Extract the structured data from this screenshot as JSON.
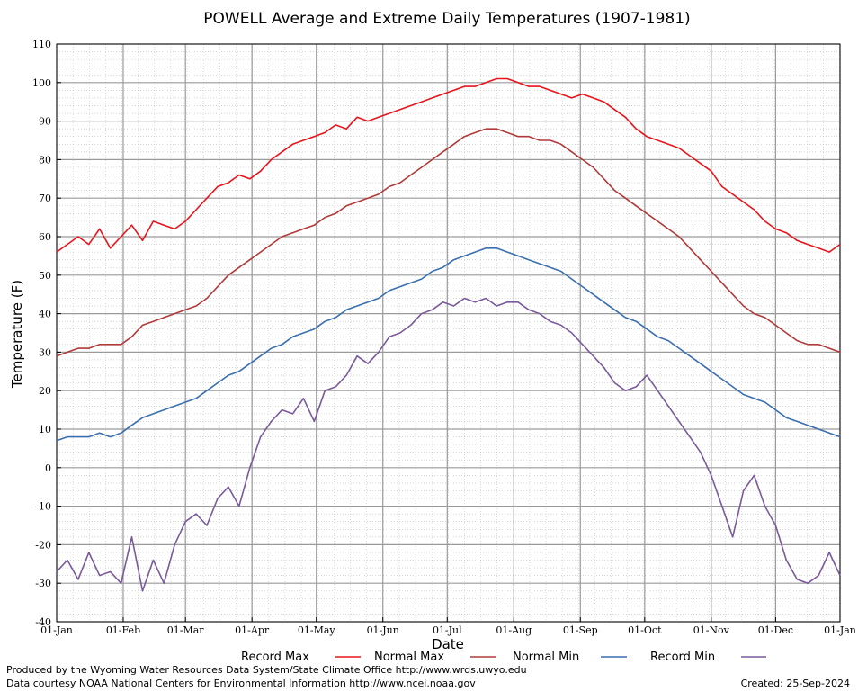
{
  "chart_data": {
    "type": "line",
    "title": "POWELL Average and Extreme Daily Temperatures (1907-1981)",
    "xlabel": "Date",
    "ylabel": "Temperature (F)",
    "xlim": [
      1,
      366
    ],
    "ylim": [
      -40,
      110
    ],
    "y_ticks": [
      -40,
      -30,
      -20,
      -10,
      0,
      10,
      20,
      30,
      40,
      50,
      60,
      70,
      80,
      90,
      100,
      110
    ],
    "x_ticks": [
      {
        "label": "01-Jan",
        "day": 1
      },
      {
        "label": "01-Feb",
        "day": 32
      },
      {
        "label": "01-Mar",
        "day": 61
      },
      {
        "label": "01-Apr",
        "day": 92
      },
      {
        "label": "01-May",
        "day": 122
      },
      {
        "label": "01-Jun",
        "day": 153
      },
      {
        "label": "01-Jul",
        "day": 183
      },
      {
        "label": "01-Aug",
        "day": 214
      },
      {
        "label": "01-Sep",
        "day": 245
      },
      {
        "label": "01-Oct",
        "day": 275
      },
      {
        "label": "01-Nov",
        "day": 306
      },
      {
        "label": "01-Dec",
        "day": 336
      },
      {
        "label": "01-Jan",
        "day": 366
      }
    ],
    "grid": true,
    "legend_position": "bottom",
    "series": [
      {
        "name": "Record Max",
        "color": "#e8141c",
        "x": [
          1,
          6,
          11,
          16,
          21,
          26,
          31,
          36,
          41,
          46,
          51,
          56,
          61,
          66,
          71,
          76,
          81,
          86,
          91,
          96,
          101,
          106,
          111,
          116,
          121,
          126,
          131,
          136,
          141,
          146,
          151,
          156,
          161,
          166,
          171,
          176,
          181,
          186,
          191,
          196,
          201,
          206,
          211,
          216,
          221,
          226,
          231,
          236,
          241,
          246,
          251,
          256,
          261,
          266,
          271,
          276,
          281,
          286,
          291,
          296,
          301,
          306,
          311,
          316,
          321,
          326,
          331,
          336,
          341,
          346,
          351,
          356,
          361,
          366
        ],
        "values": [
          56,
          58,
          60,
          58,
          62,
          57,
          60,
          63,
          59,
          64,
          63,
          62,
          64,
          67,
          70,
          73,
          74,
          76,
          75,
          77,
          80,
          82,
          84,
          85,
          86,
          87,
          89,
          88,
          91,
          90,
          91,
          92,
          93,
          94,
          95,
          96,
          97,
          98,
          99,
          99,
          100,
          101,
          101,
          100,
          99,
          99,
          98,
          97,
          96,
          97,
          96,
          95,
          93,
          91,
          88,
          86,
          85,
          84,
          83,
          81,
          79,
          77,
          73,
          71,
          69,
          67,
          64,
          62,
          61,
          59,
          58,
          57,
          56,
          58
        ]
      },
      {
        "name": "Normal Max",
        "color": "#b03a3a",
        "x": [
          1,
          6,
          11,
          16,
          21,
          26,
          31,
          36,
          41,
          46,
          51,
          56,
          61,
          66,
          71,
          76,
          81,
          86,
          91,
          96,
          101,
          106,
          111,
          116,
          121,
          126,
          131,
          136,
          141,
          146,
          151,
          156,
          161,
          166,
          171,
          176,
          181,
          186,
          191,
          196,
          201,
          206,
          211,
          216,
          221,
          226,
          231,
          236,
          241,
          246,
          251,
          256,
          261,
          266,
          271,
          276,
          281,
          286,
          291,
          296,
          301,
          306,
          311,
          316,
          321,
          326,
          331,
          336,
          341,
          346,
          351,
          356,
          361,
          366
        ],
        "values": [
          29,
          30,
          31,
          31,
          32,
          32,
          32,
          34,
          37,
          38,
          39,
          40,
          41,
          42,
          44,
          47,
          50,
          52,
          54,
          56,
          58,
          60,
          61,
          62,
          63,
          65,
          66,
          68,
          69,
          70,
          71,
          73,
          74,
          76,
          78,
          80,
          82,
          84,
          86,
          87,
          88,
          88,
          87,
          86,
          86,
          85,
          85,
          84,
          82,
          80,
          78,
          75,
          72,
          70,
          68,
          66,
          64,
          62,
          60,
          57,
          54,
          51,
          48,
          45,
          42,
          40,
          39,
          37,
          35,
          33,
          32,
          32,
          31,
          30
        ]
      },
      {
        "name": "Normal Min",
        "color": "#3a6fb0",
        "x": [
          1,
          6,
          11,
          16,
          21,
          26,
          31,
          36,
          41,
          46,
          51,
          56,
          61,
          66,
          71,
          76,
          81,
          86,
          91,
          96,
          101,
          106,
          111,
          116,
          121,
          126,
          131,
          136,
          141,
          146,
          151,
          156,
          161,
          166,
          171,
          176,
          181,
          186,
          191,
          196,
          201,
          206,
          211,
          216,
          221,
          226,
          231,
          236,
          241,
          246,
          251,
          256,
          261,
          266,
          271,
          276,
          281,
          286,
          291,
          296,
          301,
          306,
          311,
          316,
          321,
          326,
          331,
          336,
          341,
          346,
          351,
          356,
          361,
          366
        ],
        "values": [
          7,
          8,
          8,
          8,
          9,
          8,
          9,
          11,
          13,
          14,
          15,
          16,
          17,
          18,
          20,
          22,
          24,
          25,
          27,
          29,
          31,
          32,
          34,
          35,
          36,
          38,
          39,
          41,
          42,
          43,
          44,
          46,
          47,
          48,
          49,
          51,
          52,
          54,
          55,
          56,
          57,
          57,
          56,
          55,
          54,
          53,
          52,
          51,
          49,
          47,
          45,
          43,
          41,
          39,
          38,
          36,
          34,
          33,
          31,
          29,
          27,
          25,
          23,
          21,
          19,
          18,
          17,
          15,
          13,
          12,
          11,
          10,
          9,
          8
        ]
      },
      {
        "name": "Record Min",
        "color": "#7a5a9a",
        "x": [
          1,
          6,
          11,
          16,
          21,
          26,
          31,
          36,
          41,
          46,
          51,
          56,
          61,
          66,
          71,
          76,
          81,
          86,
          91,
          96,
          101,
          106,
          111,
          116,
          121,
          126,
          131,
          136,
          141,
          146,
          151,
          156,
          161,
          166,
          171,
          176,
          181,
          186,
          191,
          196,
          201,
          206,
          211,
          216,
          221,
          226,
          231,
          236,
          241,
          246,
          251,
          256,
          261,
          266,
          271,
          276,
          281,
          286,
          291,
          296,
          301,
          306,
          311,
          316,
          321,
          326,
          331,
          336,
          341,
          346,
          351,
          356,
          361,
          366
        ],
        "values": [
          -27,
          -24,
          -29,
          -22,
          -28,
          -27,
          -30,
          -18,
          -32,
          -24,
          -30,
          -20,
          -14,
          -12,
          -15,
          -8,
          -5,
          -10,
          0,
          8,
          12,
          15,
          14,
          18,
          12,
          20,
          21,
          24,
          29,
          27,
          30,
          34,
          35,
          37,
          40,
          41,
          43,
          42,
          44,
          43,
          44,
          42,
          43,
          43,
          41,
          40,
          38,
          37,
          35,
          32,
          29,
          26,
          22,
          20,
          21,
          24,
          20,
          16,
          12,
          8,
          4,
          -2,
          -10,
          -18,
          -6,
          -2,
          -10,
          -15,
          -24,
          -29,
          -30,
          -28,
          -22,
          -28
        ]
      }
    ]
  },
  "legend": {
    "items": [
      {
        "label": "Record Max",
        "color": "#e8141c"
      },
      {
        "label": "Normal Max",
        "color": "#b03a3a"
      },
      {
        "label": "Normal Min",
        "color": "#3a6fb0"
      },
      {
        "label": "Record Min",
        "color": "#7a5a9a"
      }
    ]
  },
  "footer": {
    "produced_by": "Produced by the Wyoming Water Resources Data System/State Climate Office http://www.wrds.uwyo.edu",
    "courtesy": "Data courtesy NOAA National Centers for Environmental Information http://www.ncei.noaa.gov",
    "created": "Created:  25-Sep-2024"
  }
}
